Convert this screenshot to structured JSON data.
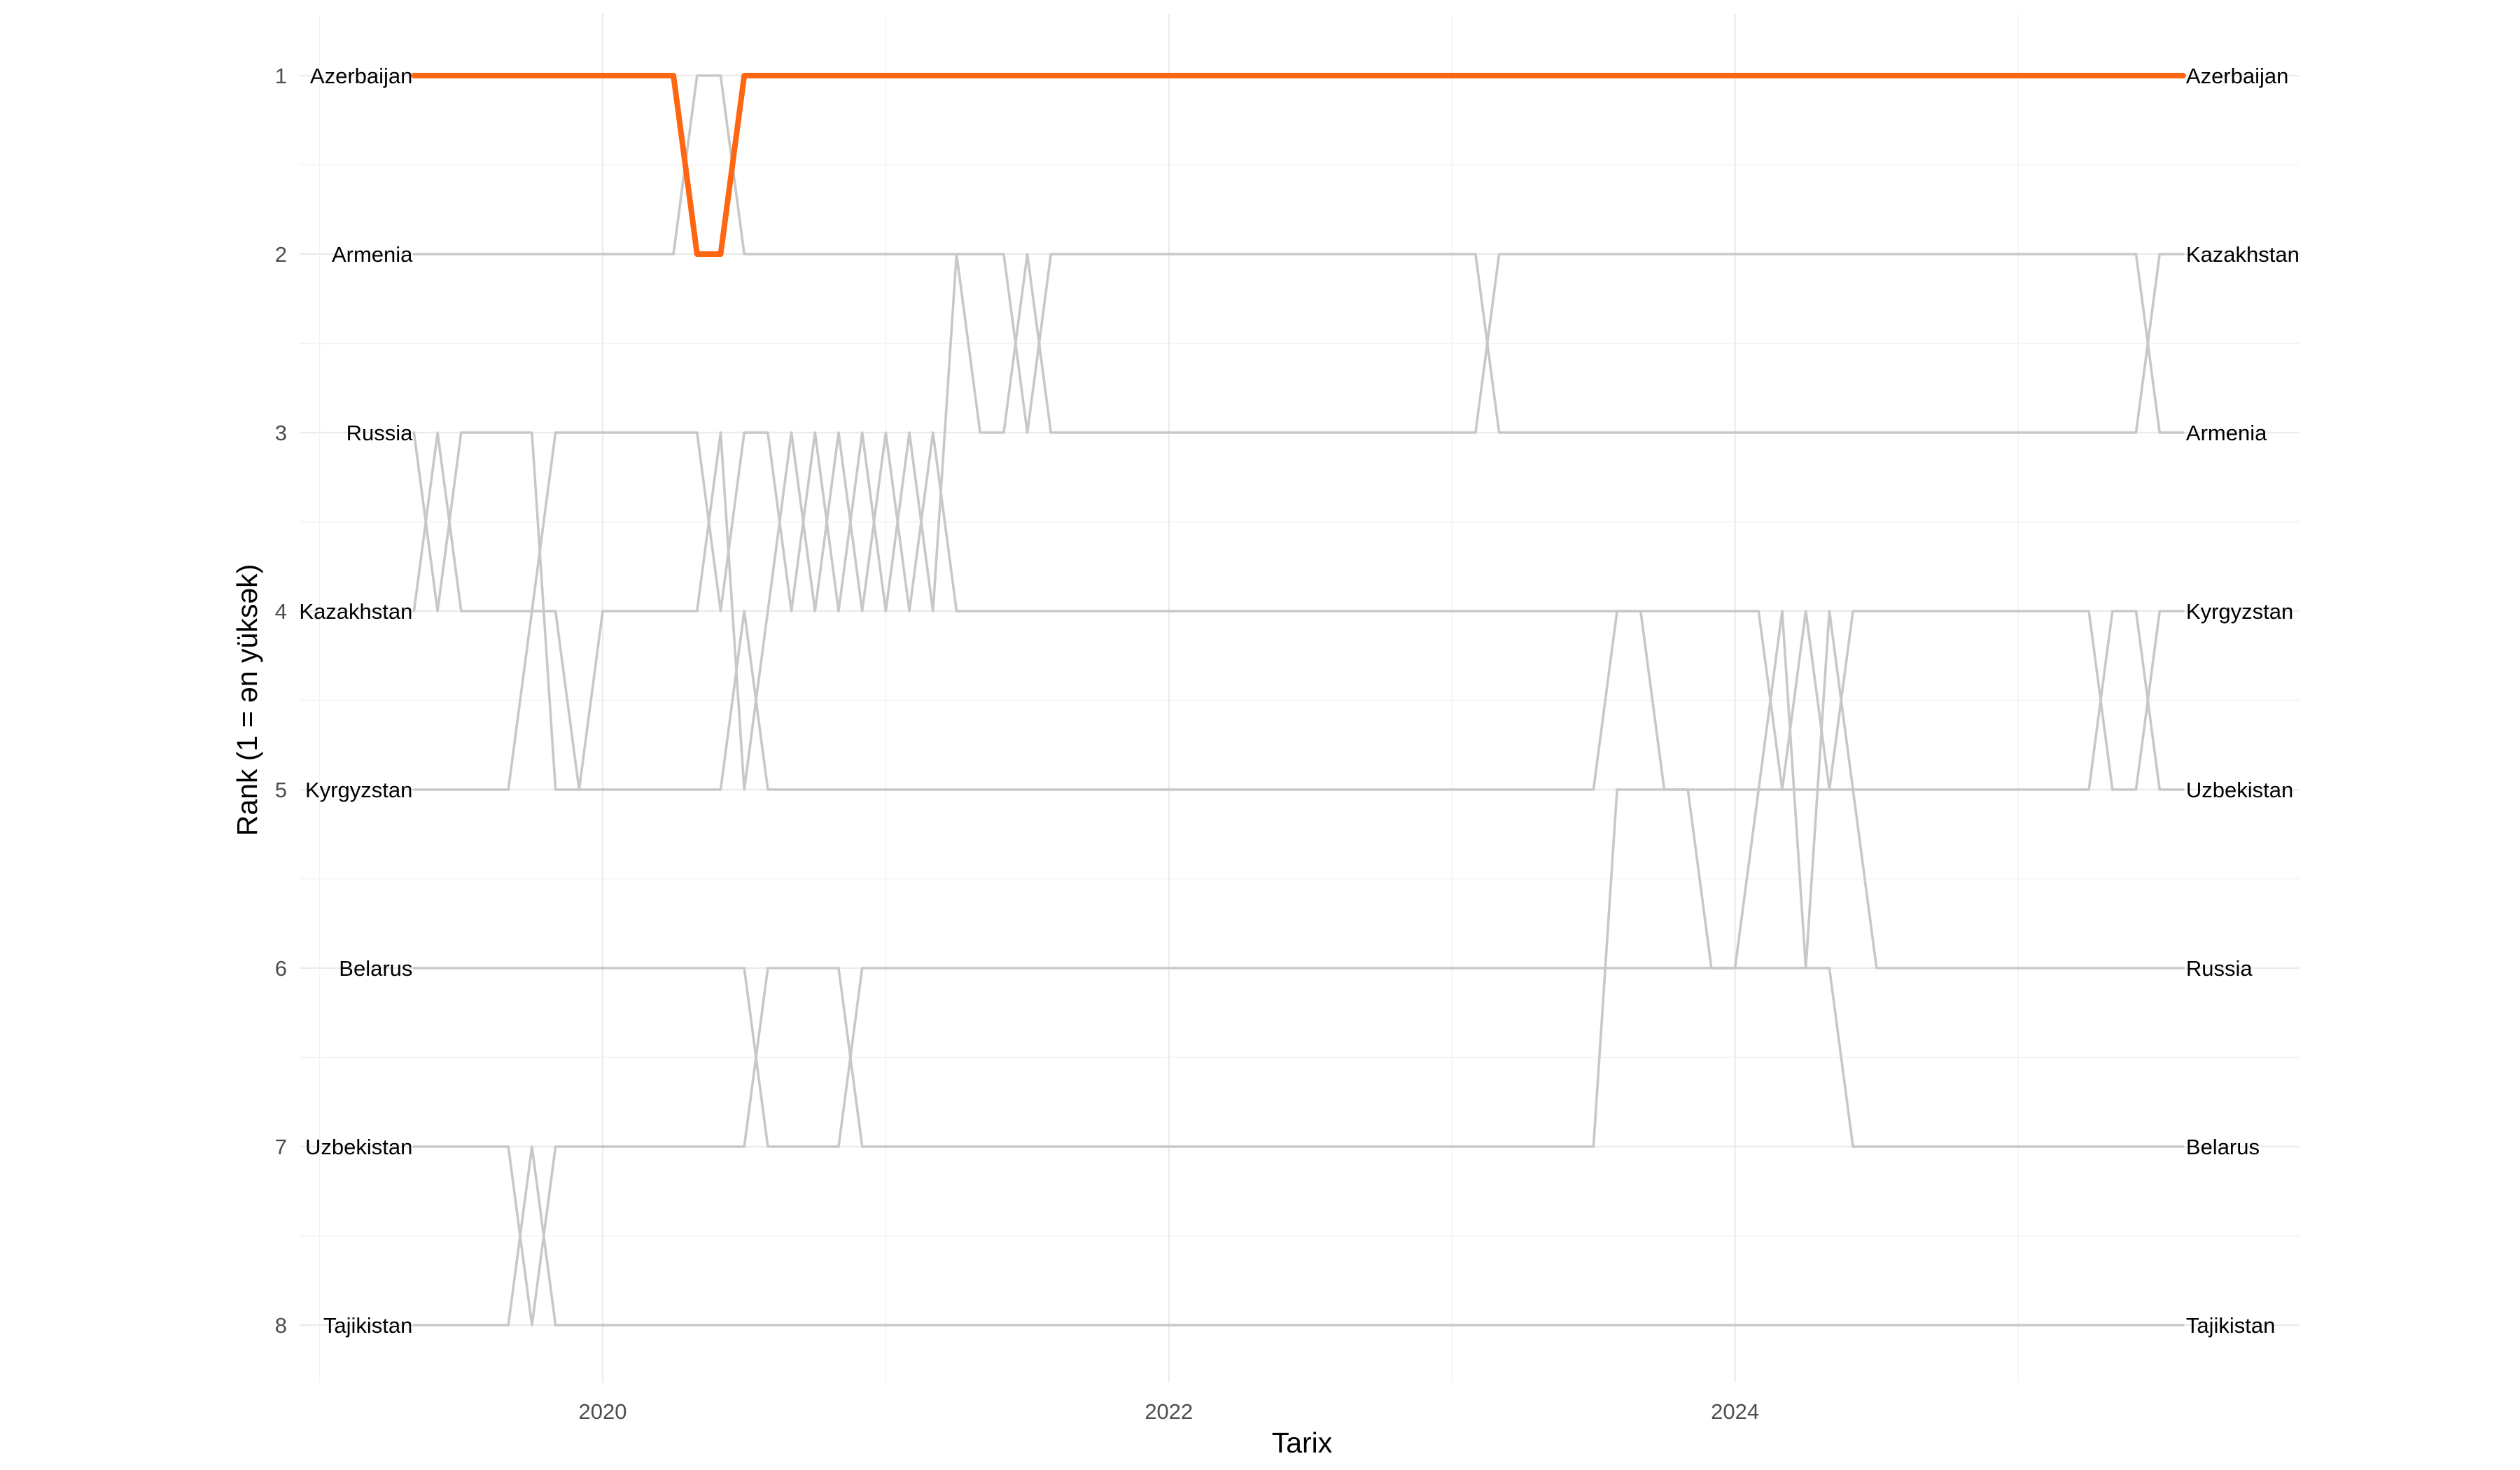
{
  "chart_data": {
    "type": "line",
    "title": "",
    "xlabel": "Tarix",
    "ylabel": "Rank (1 = ən yüksək)",
    "x_ticks": [
      "2020",
      "2022",
      "2024"
    ],
    "y_ticks": [
      "1",
      "2",
      "3",
      "4",
      "5",
      "6",
      "7",
      "8"
    ],
    "ylim": [
      1,
      8
    ],
    "y_reversed": true,
    "grid": true,
    "highlight_color": "#ff6611",
    "other_color": "#c8c8c8",
    "start_labels": [
      "Azerbaijan",
      "Armenia",
      "Russia",
      "Kazakhstan",
      "Kyrgyzstan",
      "Belarus",
      "Uzbekistan",
      "Tajikistan"
    ],
    "end_labels": [
      "Azerbaijan",
      "Kazakhstan",
      "Armenia",
      "Kyrgyzstan",
      "Uzbekistan",
      "Russia",
      "Belarus",
      "Tajikistan"
    ],
    "x": [
      "2019-05",
      "2019-06",
      "2019-07",
      "2019-08",
      "2019-09",
      "2019-10",
      "2019-11",
      "2019-12",
      "2020-01",
      "2020-02",
      "2020-03",
      "2020-04",
      "2020-05",
      "2020-06",
      "2020-07",
      "2020-08",
      "2020-09",
      "2020-10",
      "2020-11",
      "2020-12",
      "2021-01",
      "2021-02",
      "2021-03",
      "2021-04",
      "2021-05",
      "2021-06",
      "2021-07",
      "2021-08",
      "2021-09",
      "2021-10",
      "2021-11",
      "2021-12",
      "2022-01",
      "2022-02",
      "2022-03",
      "2022-04",
      "2022-05",
      "2022-06",
      "2022-07",
      "2022-08",
      "2022-09",
      "2022-10",
      "2022-11",
      "2022-12",
      "2023-01",
      "2023-02",
      "2023-03",
      "2023-04",
      "2023-05",
      "2023-06",
      "2023-07",
      "2023-08",
      "2023-09",
      "2023-10",
      "2023-11",
      "2023-12",
      "2024-01",
      "2024-02",
      "2024-03",
      "2024-04",
      "2024-05",
      "2024-06",
      "2024-07",
      "2024-08",
      "2024-09",
      "2024-10",
      "2024-11",
      "2024-12",
      "2025-01",
      "2025-02",
      "2025-03",
      "2025-04",
      "2025-05",
      "2025-06",
      "2025-07",
      "2025-08"
    ],
    "series": [
      {
        "name": "Azerbaijan",
        "highlight": true,
        "values": [
          1,
          1,
          1,
          1,
          1,
          1,
          1,
          1,
          1,
          1,
          1,
          1,
          2,
          2,
          1,
          1,
          1,
          1,
          1,
          1,
          1,
          1,
          1,
          1,
          1,
          1,
          1,
          1,
          1,
          1,
          1,
          1,
          1,
          1,
          1,
          1,
          1,
          1,
          1,
          1,
          1,
          1,
          1,
          1,
          1,
          1,
          1,
          1,
          1,
          1,
          1,
          1,
          1,
          1,
          1,
          1,
          1,
          1,
          1,
          1,
          1,
          1,
          1,
          1,
          1,
          1,
          1,
          1,
          1,
          1,
          1,
          1,
          1,
          1,
          1,
          1
        ]
      },
      {
        "name": "Armenia",
        "highlight": false,
        "values": [
          2,
          2,
          2,
          2,
          2,
          2,
          2,
          2,
          2,
          2,
          2,
          2,
          1,
          1,
          2,
          2,
          2,
          2,
          2,
          2,
          2,
          2,
          2,
          2,
          3,
          3,
          2,
          3,
          3,
          3,
          3,
          3,
          3,
          3,
          3,
          3,
          3,
          3,
          3,
          3,
          3,
          3,
          3,
          3,
          3,
          3,
          2,
          2,
          2,
          2,
          2,
          2,
          2,
          2,
          2,
          2,
          2,
          2,
          2,
          2,
          2,
          2,
          2,
          2,
          2,
          2,
          2,
          2,
          2,
          2,
          2,
          2,
          2,
          2,
          3,
          3
        ]
      },
      {
        "name": "Russia",
        "highlight": false,
        "values": [
          3,
          4,
          3,
          3,
          3,
          3,
          5,
          5,
          4,
          4,
          4,
          4,
          4,
          3,
          5,
          4,
          3,
          4,
          3,
          4,
          3,
          4,
          3,
          4,
          4,
          4,
          4,
          4,
          4,
          4,
          4,
          4,
          4,
          4,
          4,
          4,
          4,
          4,
          4,
          4,
          4,
          4,
          4,
          4,
          4,
          4,
          4,
          4,
          4,
          4,
          4,
          4,
          4,
          5,
          5,
          6,
          6,
          5,
          4,
          6,
          4,
          5,
          6,
          6,
          6,
          6,
          6,
          6,
          6,
          6,
          6,
          6,
          6,
          6,
          6,
          6
        ]
      },
      {
        "name": "Kazakhstan",
        "highlight": false,
        "values": [
          4,
          3,
          4,
          4,
          4,
          4,
          3,
          3,
          3,
          3,
          3,
          3,
          3,
          4,
          3,
          3,
          4,
          3,
          4,
          3,
          4,
          3,
          4,
          2,
          2,
          2,
          3,
          2,
          2,
          2,
          2,
          2,
          2,
          2,
          2,
          2,
          2,
          2,
          2,
          2,
          2,
          2,
          2,
          2,
          2,
          2,
          3,
          3,
          3,
          3,
          3,
          3,
          3,
          3,
          3,
          3,
          3,
          3,
          3,
          3,
          3,
          3,
          3,
          3,
          3,
          3,
          3,
          3,
          3,
          3,
          3,
          3,
          3,
          3,
          2,
          2
        ]
      },
      {
        "name": "Kyrgyzstan",
        "highlight": false,
        "values": [
          5,
          5,
          5,
          5,
          5,
          4,
          4,
          5,
          5,
          5,
          5,
          5,
          5,
          5,
          4,
          5,
          5,
          5,
          5,
          5,
          5,
          5,
          5,
          5,
          5,
          5,
          5,
          5,
          5,
          5,
          5,
          5,
          5,
          5,
          5,
          5,
          5,
          5,
          5,
          5,
          5,
          5,
          5,
          5,
          5,
          5,
          5,
          5,
          5,
          5,
          5,
          4,
          4,
          4,
          4,
          4,
          4,
          4,
          5,
          4,
          5,
          4,
          4,
          4,
          4,
          4,
          4,
          4,
          4,
          4,
          4,
          4,
          5,
          5,
          4,
          4
        ]
      },
      {
        "name": "Belarus",
        "highlight": false,
        "values": [
          6,
          6,
          6,
          6,
          6,
          6,
          6,
          6,
          6,
          6,
          6,
          6,
          6,
          6,
          6,
          7,
          7,
          7,
          7,
          6,
          6,
          6,
          6,
          6,
          6,
          6,
          6,
          6,
          6,
          6,
          6,
          6,
          6,
          6,
          6,
          6,
          6,
          6,
          6,
          6,
          6,
          6,
          6,
          6,
          6,
          6,
          6,
          6,
          6,
          6,
          6,
          6,
          6,
          6,
          6,
          6,
          6,
          6,
          6,
          6,
          6,
          7,
          7,
          7,
          7,
          7,
          7,
          7,
          7,
          7,
          7,
          7,
          7,
          7,
          7,
          7
        ]
      },
      {
        "name": "Uzbekistan",
        "highlight": false,
        "values": [
          7,
          7,
          7,
          7,
          7,
          8,
          7,
          7,
          7,
          7,
          7,
          7,
          7,
          7,
          7,
          6,
          6,
          6,
          6,
          7,
          7,
          7,
          7,
          7,
          7,
          7,
          7,
          7,
          7,
          7,
          7,
          7,
          7,
          7,
          7,
          7,
          7,
          7,
          7,
          7,
          7,
          7,
          7,
          7,
          7,
          7,
          7,
          7,
          7,
          7,
          7,
          5,
          5,
          5,
          5,
          5,
          5,
          5,
          5,
          5,
          5,
          5,
          5,
          5,
          5,
          5,
          5,
          5,
          5,
          5,
          5,
          5,
          4,
          4,
          5,
          5
        ]
      },
      {
        "name": "Tajikistan",
        "highlight": false,
        "values": [
          8,
          8,
          8,
          8,
          8,
          7,
          8,
          8,
          8,
          8,
          8,
          8,
          8,
          8,
          8,
          8,
          8,
          8,
          8,
          8,
          8,
          8,
          8,
          8,
          8,
          8,
          8,
          8,
          8,
          8,
          8,
          8,
          8,
          8,
          8,
          8,
          8,
          8,
          8,
          8,
          8,
          8,
          8,
          8,
          8,
          8,
          8,
          8,
          8,
          8,
          8,
          8,
          8,
          8,
          8,
          8,
          8,
          8,
          8,
          8,
          8,
          8,
          8,
          8,
          8,
          8,
          8,
          8,
          8,
          8,
          8,
          8,
          8,
          8,
          8,
          8
        ]
      }
    ]
  }
}
